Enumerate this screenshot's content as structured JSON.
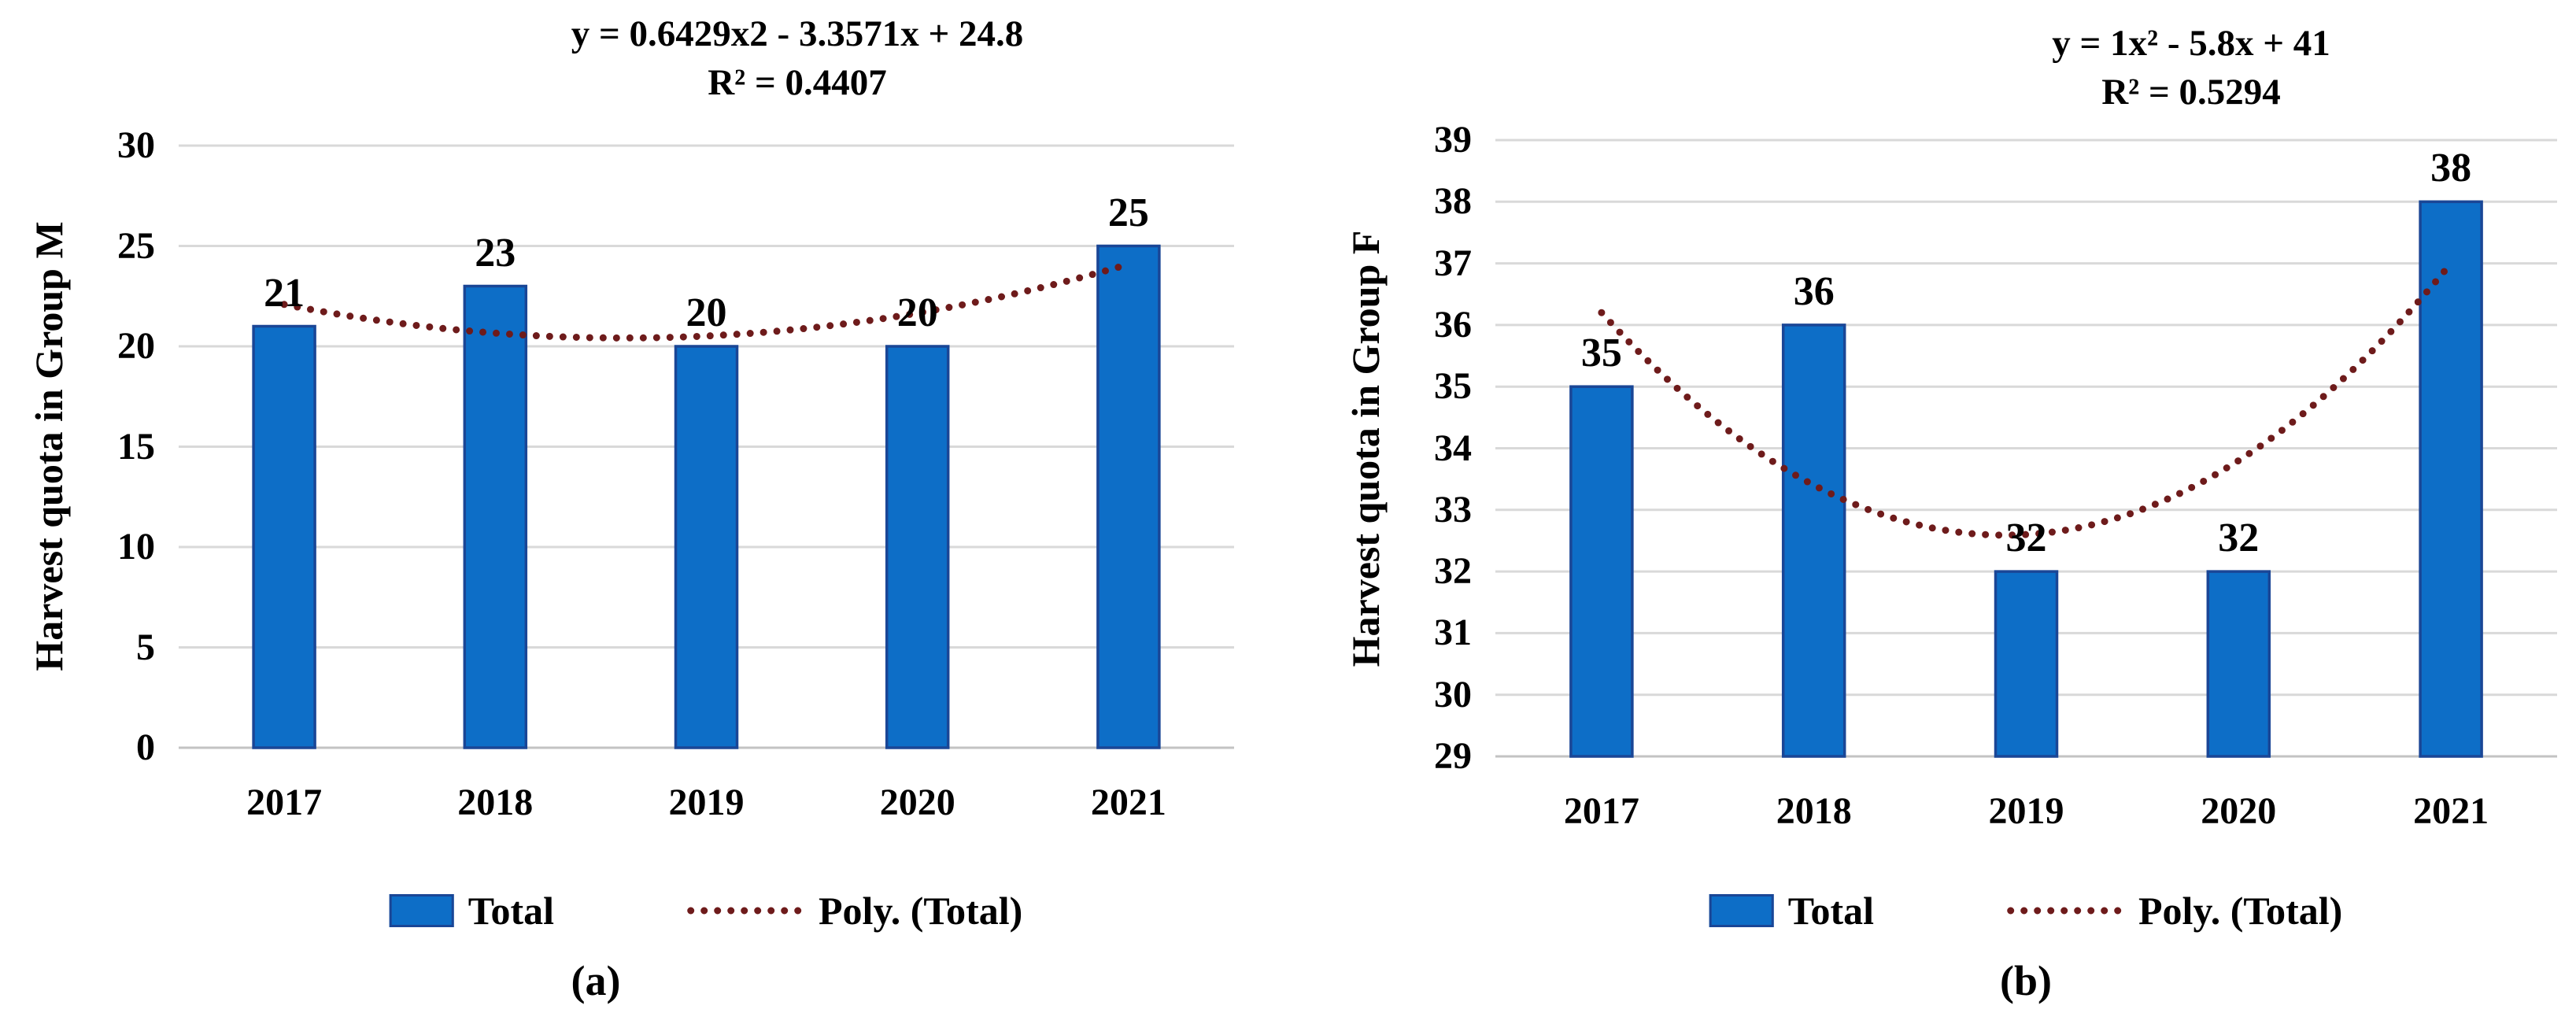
{
  "colors": {
    "bar_fill": "#0D6EC7",
    "bar_stroke": "#1A4696",
    "trend": "#6E1B1B",
    "gridline": "#D9D9D9",
    "baseline": "#C3C3C3",
    "text": "#000000",
    "background": "#FFFFFF"
  },
  "chart_data": [
    {
      "type": "bar",
      "caption": "(a)",
      "equation": "y = 0.6429x2 - 3.3571x + 24.8",
      "r_squared": "R² = 0.4407",
      "ylabel": "Harvest quota in Group M",
      "xlabel": "",
      "categories": [
        "2017",
        "2018",
        "2019",
        "2020",
        "2021"
      ],
      "values": [
        21,
        23,
        20,
        20,
        25
      ],
      "data_labels": [
        "21",
        "23",
        "20",
        "20",
        "25"
      ],
      "ylim": [
        0,
        30
      ],
      "ytick_step": 5,
      "ytick_labels": [
        "0",
        "5",
        "10",
        "15",
        "20",
        "25",
        "30"
      ],
      "grid": true,
      "legend_position": "bottom",
      "series": [
        {
          "name": "Total",
          "type": "bar",
          "values": [
            21,
            23,
            20,
            20,
            25
          ]
        },
        {
          "name": "Poly. (Total)",
          "type": "poly2",
          "coefficients": [
            0.6429,
            -3.3571,
            24.8
          ],
          "line_style": "dotted"
        }
      ]
    },
    {
      "type": "bar",
      "caption": "(b)",
      "equation": "y = 1x² - 5.8x + 41",
      "r_squared": "R² = 0.5294",
      "ylabel": "Harvest quota in Group F",
      "xlabel": "",
      "categories": [
        "2017",
        "2018",
        "2019",
        "2020",
        "2021"
      ],
      "values": [
        35,
        36,
        32,
        32,
        38
      ],
      "data_labels": [
        "35",
        "36",
        "32",
        "32",
        "38"
      ],
      "ylim": [
        29,
        39
      ],
      "ytick_step": 1,
      "ytick_labels": [
        "29",
        "30",
        "31",
        "32",
        "33",
        "34",
        "35",
        "36",
        "37",
        "38",
        "39"
      ],
      "grid": true,
      "legend_position": "bottom",
      "series": [
        {
          "name": "Total",
          "type": "bar",
          "values": [
            35,
            36,
            32,
            32,
            38
          ]
        },
        {
          "name": "Poly. (Total)",
          "type": "poly2",
          "coefficients": [
            1,
            -5.8,
            41
          ],
          "line_style": "dotted"
        }
      ]
    }
  ]
}
